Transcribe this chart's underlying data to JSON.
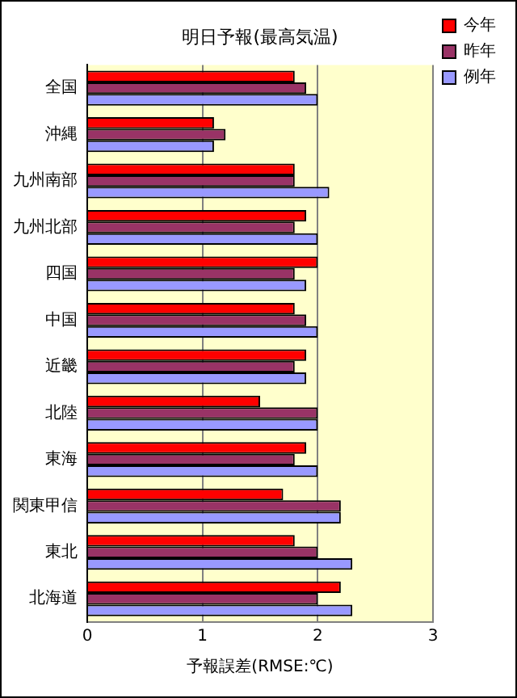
{
  "chart_data": {
    "type": "bar",
    "orientation": "horizontal",
    "title": "明日予報(最高気温)",
    "xlabel": "予報誤差(RMSE:℃)",
    "categories": [
      "全国",
      "沖縄",
      "九州南部",
      "九州北部",
      "四国",
      "中国",
      "近畿",
      "北陸",
      "東海",
      "関東甲信",
      "東北",
      "北海道"
    ],
    "series": [
      {
        "name": "今年",
        "color": "#ff0000",
        "values": [
          1.8,
          1.1,
          1.8,
          1.9,
          2.0,
          1.8,
          1.9,
          1.5,
          1.9,
          1.7,
          1.8,
          2.2
        ]
      },
      {
        "name": "昨年",
        "color": "#993366",
        "values": [
          1.9,
          1.2,
          1.8,
          1.8,
          1.8,
          1.9,
          1.8,
          2.0,
          1.8,
          2.2,
          2.0,
          2.0
        ]
      },
      {
        "name": "例年",
        "color": "#9999ff",
        "values": [
          2.0,
          1.1,
          2.1,
          2.0,
          1.9,
          2.0,
          1.9,
          2.0,
          2.0,
          2.2,
          2.3,
          2.3
        ]
      }
    ],
    "xlim": [
      0,
      3
    ],
    "xticks": [
      0,
      1,
      2,
      3
    ],
    "grid": "x",
    "legend": "top right"
  }
}
